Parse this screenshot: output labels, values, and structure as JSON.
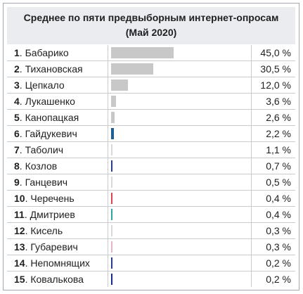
{
  "header": {
    "title_line1": "Среднее по пяти предвыборным интернет-опросам",
    "title_line2": "(Май 2020)"
  },
  "chart_data": {
    "type": "bar",
    "orientation": "horizontal",
    "unit": "%",
    "xlim": [
      0,
      100
    ],
    "rows": [
      {
        "rank": "1",
        "name": "Бабарико",
        "value": 45.0,
        "label": "45,0 %",
        "color": "#c8c8c8"
      },
      {
        "rank": "2",
        "name": "Тихановская",
        "value": 30.5,
        "label": "30,5 %",
        "color": "#c8c8c8"
      },
      {
        "rank": "3",
        "name": "Цепкало",
        "value": 12.0,
        "label": "12,0 %",
        "color": "#c8c8c8"
      },
      {
        "rank": "4",
        "name": "Лукашенко",
        "value": 3.6,
        "label": "3,6 %",
        "color": "#c8c8c8"
      },
      {
        "rank": "5",
        "name": "Канопацкая",
        "value": 2.6,
        "label": "2,6 %",
        "color": "#c8c8c8"
      },
      {
        "rank": "6",
        "name": "Гайдукевич",
        "value": 2.2,
        "label": "2,2 %",
        "color": "#1f5f96"
      },
      {
        "rank": "7",
        "name": "Таболич",
        "value": 1.1,
        "label": "1,1 %",
        "color": "#d8d8d8"
      },
      {
        "rank": "8",
        "name": "Козлов",
        "value": 0.7,
        "label": "0,7 %",
        "color": "#2b3a8c"
      },
      {
        "rank": "9",
        "name": "Ганцевич",
        "value": 0.5,
        "label": "0,5 %",
        "color": "#d8d8d8"
      },
      {
        "rank": "10",
        "name": "Черечень",
        "value": 0.4,
        "label": "0,4 %",
        "color": "#e0454f"
      },
      {
        "rank": "11",
        "name": "Дмитриев",
        "value": 0.4,
        "label": "0,4 %",
        "color": "#2aa6a6"
      },
      {
        "rank": "12",
        "name": "Кисель",
        "value": 0.3,
        "label": "0,3 %",
        "color": "#d8d8d8"
      },
      {
        "rank": "13",
        "name": "Губаревич",
        "value": 0.3,
        "label": "0,3 %",
        "color": "#e8b4c4"
      },
      {
        "rank": "14",
        "name": "Непомнящих",
        "value": 0.2,
        "label": "0,2 %",
        "color": "#2b3a8c"
      },
      {
        "rank": "15",
        "name": "Ковалькова",
        "value": 0.2,
        "label": "0,2 %",
        "color": "#1a2a8c"
      }
    ]
  }
}
